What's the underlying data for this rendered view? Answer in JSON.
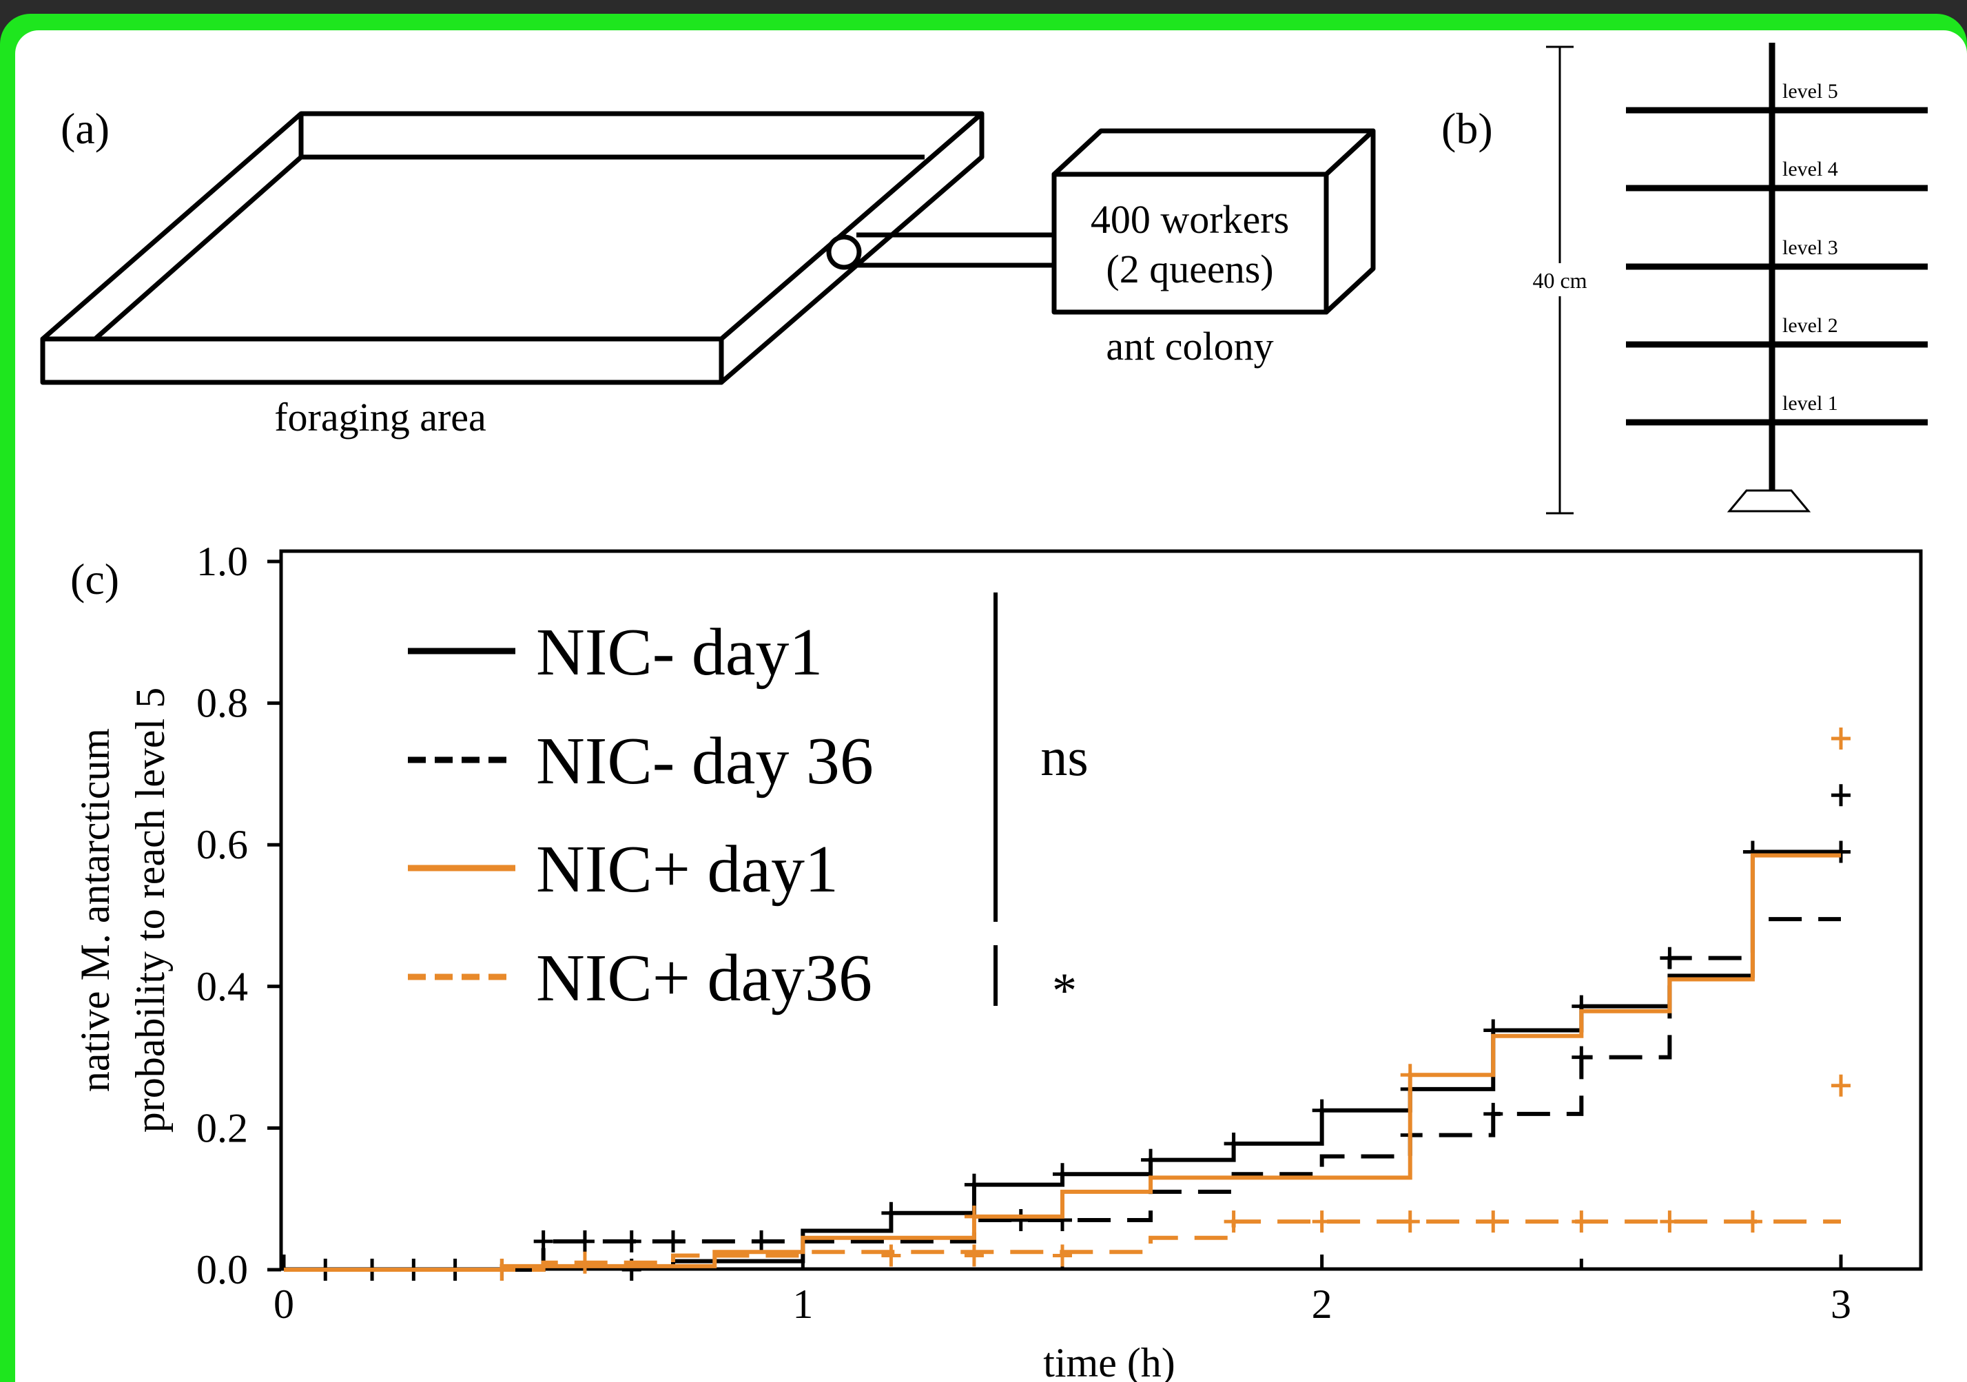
{
  "panels": {
    "a": {
      "label": "(a)",
      "foraging_label": "foraging area",
      "colony_line1": "400 workers",
      "colony_line2": "(2 queens)",
      "colony_label": "ant colony"
    },
    "b": {
      "label": "(b)",
      "height_label": "40 cm",
      "levels": [
        "level 5",
        "level 4",
        "level 3",
        "level 2",
        "level 1"
      ]
    },
    "c": {
      "label": "(c)",
      "significance": [
        {
          "symbol": "ns",
          "groups": [
            "NIC- day1",
            "NIC- day 36",
            "NIC+ day1"
          ]
        },
        {
          "symbol": "*",
          "groups": [
            "NIC+ day36"
          ]
        }
      ]
    }
  },
  "chart_data": {
    "type": "line",
    "subtype": "kaplan-meier step curves with censoring marks",
    "xlabel": "time (h)",
    "ylabel_line1": "native M. antarcticum",
    "ylabel_line2": "probability to reach level 5",
    "xlim": [
      0,
      3
    ],
    "ylim": [
      0,
      1
    ],
    "xticks": [
      "0",
      "1",
      "2",
      "3"
    ],
    "yticks": [
      "0.0",
      "0.2",
      "0.4",
      "0.6",
      "0.8",
      "1.0"
    ],
    "legend_position": "top-left",
    "colors": {
      "black": "#000000",
      "orange": "#e8892a"
    },
    "series": [
      {
        "name": "NIC- day1",
        "color": "#000000",
        "dash": "solid",
        "steps": [
          [
            0,
            0
          ],
          [
            0.5,
            0.002
          ],
          [
            0.75,
            0.012
          ],
          [
            1.0,
            0.055
          ],
          [
            1.17,
            0.08
          ],
          [
            1.33,
            0.12
          ],
          [
            1.5,
            0.135
          ],
          [
            1.67,
            0.155
          ],
          [
            1.83,
            0.178
          ],
          [
            2.0,
            0.225
          ],
          [
            2.17,
            0.255
          ],
          [
            2.33,
            0.338
          ],
          [
            2.5,
            0.372
          ],
          [
            2.67,
            0.415
          ],
          [
            2.83,
            0.59
          ],
          [
            3.0,
            0.59
          ]
        ],
        "censored": [
          [
            0.08,
            0.0
          ],
          [
            0.17,
            0.0
          ],
          [
            0.25,
            0.0
          ],
          [
            0.33,
            0.0
          ],
          [
            0.42,
            0.0
          ],
          [
            0.67,
            0.0
          ],
          [
            1.17,
            0.08
          ],
          [
            1.33,
            0.12
          ],
          [
            1.5,
            0.135
          ],
          [
            1.67,
            0.155
          ],
          [
            1.83,
            0.178
          ],
          [
            2.0,
            0.225
          ],
          [
            2.17,
            0.255
          ],
          [
            2.33,
            0.338
          ],
          [
            2.5,
            0.372
          ],
          [
            2.83,
            0.59
          ],
          [
            3.0,
            0.59
          ]
        ]
      },
      {
        "name": "NIC- day 36",
        "color": "#000000",
        "dash": "dashed",
        "steps": [
          [
            0,
            0
          ],
          [
            0.5,
            0.04
          ],
          [
            0.83,
            0.04
          ],
          [
            1.0,
            0.04
          ],
          [
            1.33,
            0.07
          ],
          [
            1.67,
            0.11
          ],
          [
            1.83,
            0.135
          ],
          [
            2.0,
            0.16
          ],
          [
            2.17,
            0.19
          ],
          [
            2.33,
            0.22
          ],
          [
            2.5,
            0.3
          ],
          [
            2.67,
            0.44
          ],
          [
            2.83,
            0.495
          ],
          [
            3.0,
            0.495
          ]
        ],
        "censored": [
          [
            0.5,
            0.04
          ],
          [
            0.58,
            0.04
          ],
          [
            0.67,
            0.04
          ],
          [
            0.75,
            0.04
          ],
          [
            0.92,
            0.04
          ],
          [
            1.42,
            0.07
          ],
          [
            1.5,
            0.07
          ],
          [
            2.17,
            0.19
          ],
          [
            2.33,
            0.22
          ],
          [
            2.5,
            0.3
          ],
          [
            2.67,
            0.44
          ],
          [
            3.0,
            0.67
          ]
        ]
      },
      {
        "name": "NIC+ day1",
        "color": "#e8892a",
        "dash": "solid",
        "steps": [
          [
            0,
            0
          ],
          [
            0.42,
            0.005
          ],
          [
            0.83,
            0.025
          ],
          [
            1.0,
            0.045
          ],
          [
            1.33,
            0.075
          ],
          [
            1.5,
            0.11
          ],
          [
            1.67,
            0.13
          ],
          [
            2.17,
            0.275
          ],
          [
            2.33,
            0.33
          ],
          [
            2.5,
            0.365
          ],
          [
            2.67,
            0.41
          ],
          [
            2.83,
            0.585
          ],
          [
            3.0,
            0.585
          ]
        ],
        "censored": [
          [
            1.33,
            0.075
          ],
          [
            2.17,
            0.275
          ],
          [
            3.0,
            0.75
          ]
        ]
      },
      {
        "name": "NIC+ day36",
        "color": "#e8892a",
        "dash": "dashed",
        "steps": [
          [
            0,
            0
          ],
          [
            0.5,
            0.01
          ],
          [
            0.75,
            0.02
          ],
          [
            1.0,
            0.025
          ],
          [
            1.67,
            0.045
          ],
          [
            1.83,
            0.068
          ],
          [
            3.0,
            0.068
          ]
        ],
        "censored": [
          [
            0.42,
            0.0
          ],
          [
            0.58,
            0.01
          ],
          [
            1.17,
            0.02
          ],
          [
            1.33,
            0.02
          ],
          [
            1.5,
            0.02
          ],
          [
            1.83,
            0.068
          ],
          [
            2.0,
            0.068
          ],
          [
            2.17,
            0.068
          ],
          [
            2.33,
            0.068
          ],
          [
            2.5,
            0.068
          ],
          [
            2.67,
            0.068
          ],
          [
            2.83,
            0.068
          ],
          [
            3.0,
            0.26
          ]
        ]
      }
    ]
  }
}
